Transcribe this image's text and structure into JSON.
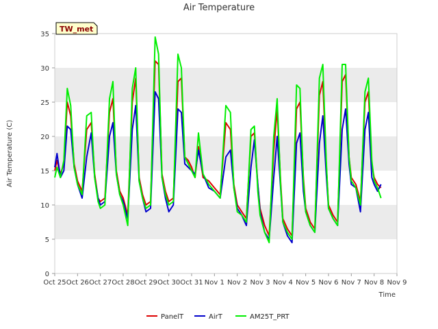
{
  "chart_data": {
    "type": "line",
    "title": "Air Temperature",
    "xlabel": "Time",
    "ylabel": "Air Temperature (C)",
    "badge": "TW_met",
    "ylim": [
      0,
      35
    ],
    "yticks": [
      0,
      5,
      10,
      15,
      20,
      25,
      30,
      35
    ],
    "xlim": [
      0,
      15
    ],
    "xtick_labels": [
      "Oct 25",
      "Oct 26",
      "Oct 27",
      "Oct 28",
      "Oct 29",
      "Oct 30",
      "Oct 31",
      "Nov 1",
      "Nov 2",
      "Nov 3",
      "Nov 4",
      "Nov 5",
      "Nov 6",
      "Nov 7",
      "Nov 8",
      "Nov 9"
    ],
    "grid": "horizontal bands",
    "legend_position": "bottom-center",
    "colors": {
      "PanelT": "#dd0000",
      "AirT": "#0000cc",
      "AM25T_PRT": "#00ee00",
      "band": "#ebebeb",
      "badge_bg": "#ffffcc"
    },
    "series": [
      {
        "name": "PanelT",
        "x": [
          0.0,
          0.1,
          0.25,
          0.4,
          0.55,
          0.7,
          0.85,
          1.0,
          1.2,
          1.4,
          1.6,
          1.75,
          1.9,
          2.0,
          2.2,
          2.4,
          2.55,
          2.7,
          2.85,
          3.0,
          3.2,
          3.4,
          3.55,
          3.7,
          3.85,
          4.0,
          4.2,
          4.4,
          4.55,
          4.7,
          4.85,
          5.0,
          5.2,
          5.4,
          5.55,
          5.7,
          5.85,
          6.0,
          6.15,
          6.3,
          6.5,
          6.75,
          7.0,
          7.25,
          7.5,
          7.7,
          7.85,
          8.0,
          8.2,
          8.4,
          8.6,
          8.75,
          8.9,
          9.0,
          9.2,
          9.4,
          9.6,
          9.75,
          9.9,
          10.0,
          10.2,
          10.4,
          10.6,
          10.75,
          10.9,
          11.0,
          11.2,
          11.4,
          11.6,
          11.75,
          11.9,
          12.0,
          12.2,
          12.4,
          12.6,
          12.75,
          12.9,
          13.0,
          13.2,
          13.4,
          13.6,
          13.75,
          13.9,
          14.0,
          14.15,
          14.3
        ],
        "values": [
          15.0,
          16.5,
          14.5,
          16.0,
          25.0,
          23.0,
          16.0,
          13.5,
          12.0,
          21.0,
          22.0,
          14.5,
          11.0,
          10.5,
          11.0,
          23.5,
          25.5,
          15.0,
          12.0,
          11.0,
          8.5,
          25.0,
          28.5,
          14.0,
          11.5,
          10.0,
          10.5,
          31.0,
          30.5,
          14.5,
          12.0,
          10.5,
          11.0,
          28.0,
          28.5,
          17.0,
          16.5,
          15.5,
          14.0,
          18.5,
          14.0,
          13.5,
          12.5,
          11.5,
          22.0,
          21.0,
          13.0,
          10.0,
          9.0,
          8.0,
          20.0,
          20.5,
          13.0,
          9.5,
          7.0,
          5.5,
          18.0,
          24.0,
          13.5,
          8.0,
          6.5,
          5.5,
          24.0,
          25.0,
          14.0,
          9.5,
          7.5,
          6.5,
          26.0,
          28.0,
          16.0,
          10.0,
          8.5,
          7.5,
          28.0,
          29.0,
          17.0,
          14.0,
          13.0,
          10.5,
          25.0,
          26.5,
          16.0,
          14.0,
          13.0,
          12.5
        ]
      },
      {
        "name": "AirT",
        "x": [
          0.0,
          0.1,
          0.25,
          0.4,
          0.55,
          0.7,
          0.85,
          1.0,
          1.2,
          1.4,
          1.6,
          1.75,
          1.9,
          2.0,
          2.2,
          2.4,
          2.55,
          2.7,
          2.85,
          3.0,
          3.2,
          3.4,
          3.55,
          3.7,
          3.85,
          4.0,
          4.2,
          4.4,
          4.55,
          4.7,
          4.85,
          5.0,
          5.2,
          5.4,
          5.55,
          5.7,
          5.85,
          6.0,
          6.15,
          6.3,
          6.5,
          6.75,
          7.0,
          7.25,
          7.5,
          7.7,
          7.85,
          8.0,
          8.2,
          8.4,
          8.6,
          8.75,
          8.9,
          9.0,
          9.2,
          9.4,
          9.6,
          9.75,
          9.9,
          10.0,
          10.2,
          10.4,
          10.6,
          10.75,
          10.9,
          11.0,
          11.2,
          11.4,
          11.6,
          11.75,
          11.9,
          12.0,
          12.2,
          12.4,
          12.6,
          12.75,
          12.9,
          13.0,
          13.2,
          13.4,
          13.6,
          13.75,
          13.9,
          14.0,
          14.15,
          14.3
        ],
        "values": [
          15.5,
          17.5,
          14.0,
          15.0,
          21.5,
          21.0,
          15.5,
          13.0,
          11.0,
          17.0,
          20.5,
          14.0,
          11.0,
          10.0,
          10.5,
          20.0,
          22.0,
          14.5,
          11.5,
          10.5,
          8.0,
          21.0,
          24.5,
          13.5,
          11.0,
          9.0,
          9.5,
          26.5,
          25.5,
          14.0,
          11.0,
          9.0,
          10.0,
          24.0,
          23.5,
          16.0,
          15.5,
          15.0,
          14.5,
          18.0,
          14.5,
          12.5,
          12.0,
          11.0,
          17.0,
          18.0,
          12.5,
          9.5,
          8.5,
          7.0,
          15.5,
          19.5,
          13.0,
          9.0,
          6.0,
          5.0,
          14.0,
          20.0,
          12.5,
          7.5,
          5.5,
          4.5,
          19.0,
          20.5,
          12.0,
          9.0,
          7.0,
          6.0,
          19.0,
          23.0,
          14.5,
          9.5,
          8.0,
          7.0,
          21.0,
          24.0,
          16.0,
          13.0,
          12.5,
          9.0,
          21.0,
          23.5,
          14.0,
          13.0,
          12.0,
          13.0
        ]
      },
      {
        "name": "AM25T_PRT",
        "x": [
          0.0,
          0.1,
          0.25,
          0.4,
          0.55,
          0.7,
          0.85,
          1.0,
          1.2,
          1.4,
          1.6,
          1.75,
          1.9,
          2.0,
          2.2,
          2.4,
          2.55,
          2.7,
          2.85,
          3.0,
          3.2,
          3.4,
          3.55,
          3.7,
          3.85,
          4.0,
          4.2,
          4.4,
          4.55,
          4.7,
          4.85,
          5.0,
          5.2,
          5.4,
          5.55,
          5.7,
          5.85,
          6.0,
          6.15,
          6.3,
          6.5,
          6.75,
          7.0,
          7.25,
          7.5,
          7.7,
          7.85,
          8.0,
          8.2,
          8.4,
          8.6,
          8.75,
          8.9,
          9.0,
          9.2,
          9.4,
          9.6,
          9.75,
          9.9,
          10.0,
          10.2,
          10.4,
          10.6,
          10.75,
          10.9,
          11.0,
          11.2,
          11.4,
          11.6,
          11.75,
          11.9,
          12.0,
          12.2,
          12.4,
          12.6,
          12.75,
          12.9,
          13.0,
          13.2,
          13.4,
          13.6,
          13.75,
          13.9,
          14.0,
          14.15,
          14.3
        ],
        "values": [
          14.0,
          15.5,
          14.0,
          16.5,
          27.0,
          24.5,
          15.5,
          13.0,
          11.5,
          23.0,
          23.5,
          14.0,
          10.5,
          9.5,
          10.0,
          25.5,
          28.0,
          14.5,
          11.5,
          10.0,
          7.0,
          27.0,
          30.0,
          13.5,
          11.0,
          9.5,
          10.0,
          34.5,
          32.0,
          14.0,
          11.5,
          10.0,
          10.5,
          32.0,
          30.0,
          17.0,
          16.0,
          15.0,
          14.0,
          20.5,
          14.5,
          13.0,
          12.0,
          11.0,
          24.5,
          23.5,
          12.5,
          9.0,
          8.5,
          7.5,
          21.0,
          21.5,
          12.0,
          8.5,
          6.0,
          4.5,
          20.0,
          25.5,
          13.0,
          7.5,
          6.0,
          5.0,
          27.5,
          27.0,
          13.5,
          9.0,
          7.0,
          6.0,
          28.5,
          30.5,
          16.5,
          9.5,
          8.0,
          7.0,
          30.5,
          30.5,
          17.0,
          13.5,
          12.5,
          10.0,
          26.5,
          28.5,
          16.5,
          13.5,
          12.5,
          11.0
        ]
      }
    ]
  }
}
